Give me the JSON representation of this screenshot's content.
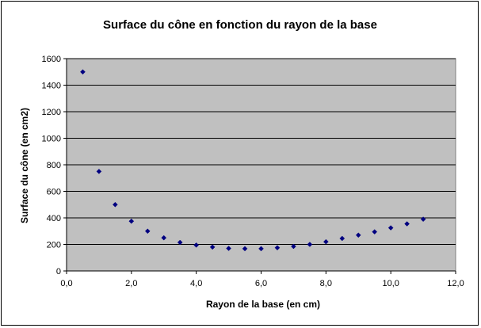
{
  "chart_data": {
    "type": "scatter",
    "title": "Surface du cône en fonction du rayon de la base",
    "xlabel": "Rayon de la base (en cm)",
    "ylabel": "Surface du cône (en cm2)",
    "xlim": [
      0,
      12
    ],
    "ylim": [
      0,
      1600
    ],
    "x_ticks": [
      0,
      2,
      4,
      6,
      8,
      10,
      12
    ],
    "x_tick_labels": [
      "0,0",
      "2,0",
      "4,0",
      "6,0",
      "8,0",
      "10,0",
      "12,0"
    ],
    "y_ticks": [
      0,
      200,
      400,
      600,
      800,
      1000,
      1200,
      1400,
      1600
    ],
    "y_tick_labels": [
      "0",
      "200",
      "400",
      "600",
      "800",
      "1000",
      "1200",
      "1400",
      "1600"
    ],
    "grid": "horizontal major gridlines",
    "legend": "none",
    "plot_background": "#c0c0c0",
    "marker_color": "#000080",
    "series": [
      {
        "x": [
          0.5,
          1.0,
          1.5,
          2.0,
          2.5,
          3.0,
          3.5,
          4.0,
          4.5,
          5.0,
          5.5,
          6.0,
          6.5,
          7.0,
          7.5,
          8.0,
          8.5,
          9.0,
          9.5,
          10.0,
          10.5,
          11.0
        ],
        "y": [
          1500,
          750,
          500,
          375,
          300,
          250,
          215,
          195,
          180,
          170,
          168,
          168,
          175,
          185,
          200,
          220,
          245,
          270,
          295,
          325,
          355,
          390
        ]
      }
    ]
  }
}
